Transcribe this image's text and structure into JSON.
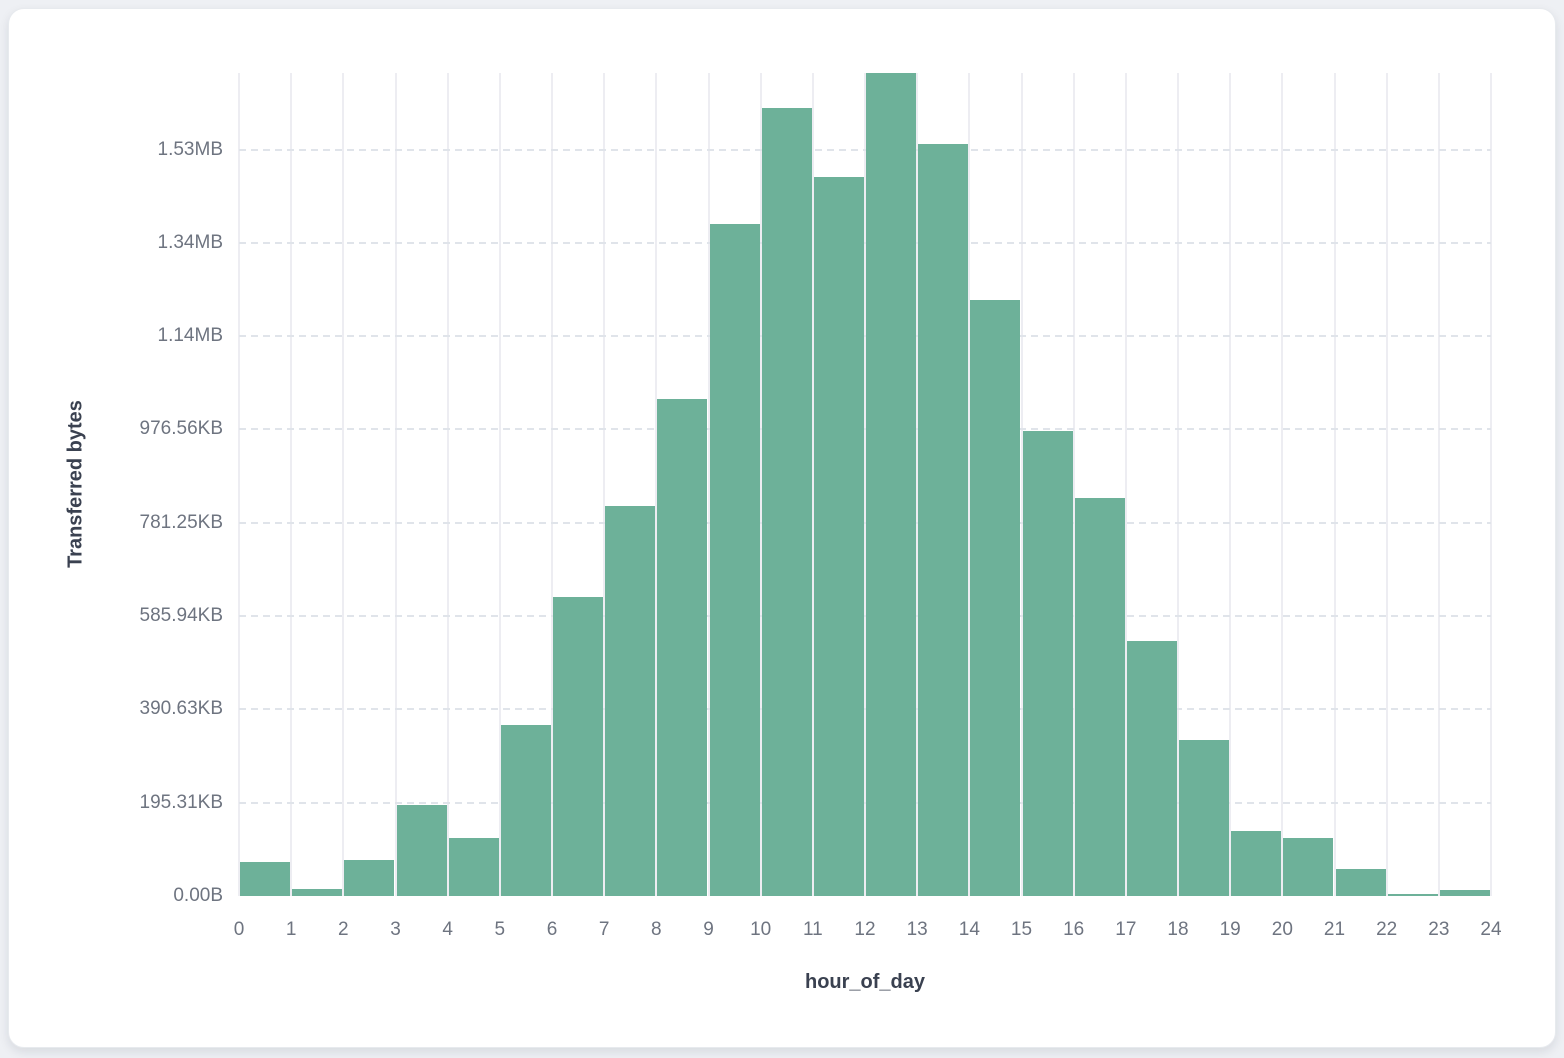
{
  "page": {
    "background_color": "#eef0f4",
    "card_background_color": "#ffffff"
  },
  "chart_data": {
    "type": "bar",
    "title": "",
    "xlabel": "hour_of_day",
    "ylabel": "Transferred bytes",
    "bar_color": "#6db199",
    "grid": true,
    "legend": false,
    "ylim": [
      0,
      1764000
    ],
    "y_ticks": [
      {
        "label": "0.00B",
        "value": 0
      },
      {
        "label": "195.31KB",
        "value": 200000
      },
      {
        "label": "390.63KB",
        "value": 400000
      },
      {
        "label": "585.94KB",
        "value": 600000
      },
      {
        "label": "781.25KB",
        "value": 800000
      },
      {
        "label": "976.56KB",
        "value": 1000000
      },
      {
        "label": "1.14MB",
        "value": 1200000
      },
      {
        "label": "1.34MB",
        "value": 1400000
      },
      {
        "label": "1.53MB",
        "value": 1600000
      }
    ],
    "x_ticks": [
      "0",
      "1",
      "2",
      "3",
      "4",
      "5",
      "6",
      "7",
      "8",
      "9",
      "10",
      "11",
      "12",
      "13",
      "14",
      "15",
      "16",
      "17",
      "18",
      "19",
      "20",
      "21",
      "22",
      "23",
      "24"
    ],
    "categories": [
      0,
      1,
      2,
      3,
      4,
      5,
      6,
      7,
      8,
      9,
      10,
      11,
      12,
      13,
      14,
      15,
      16,
      17,
      18,
      19,
      20,
      21,
      22,
      23
    ],
    "values_bytes": [
      73000,
      15000,
      77000,
      195000,
      124000,
      366000,
      640000,
      837000,
      1066000,
      1441000,
      1690000,
      1542000,
      1764000,
      1612000,
      1278000,
      996000,
      854000,
      546000,
      334000,
      139000,
      124000,
      58000,
      4000,
      13000
    ]
  }
}
